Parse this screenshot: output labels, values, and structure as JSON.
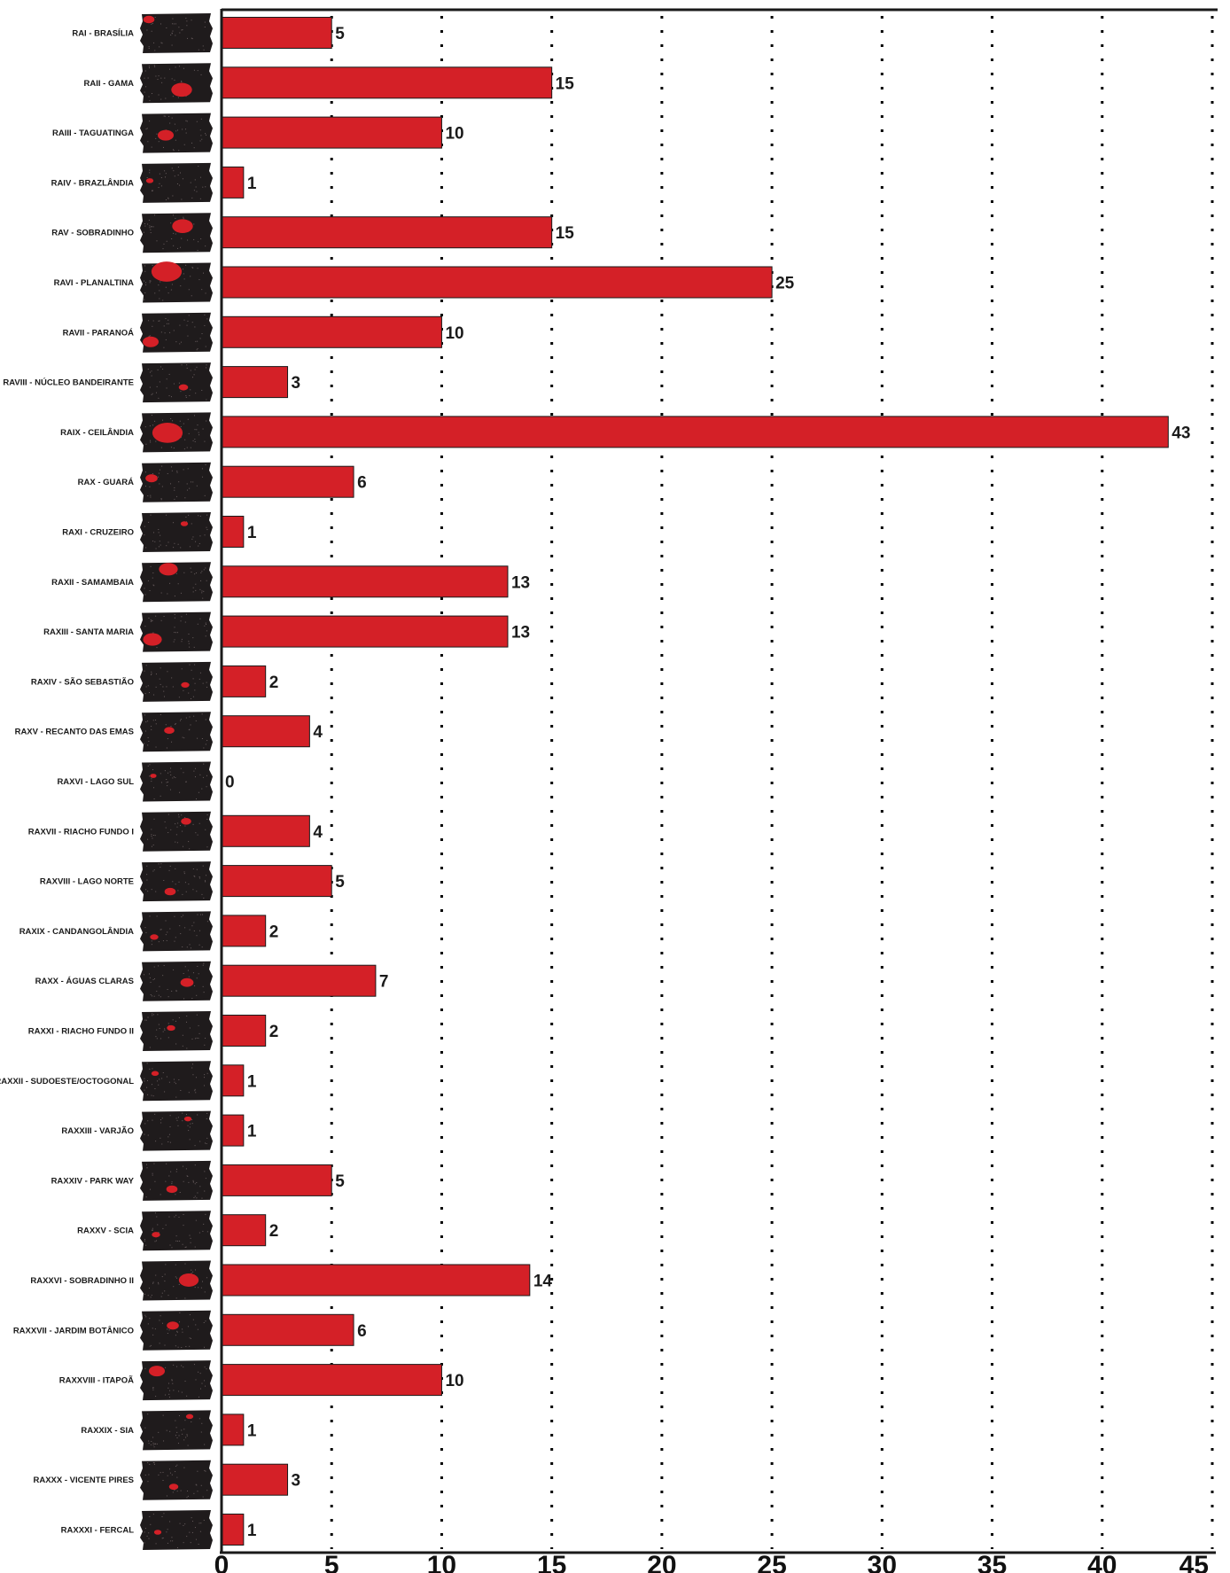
{
  "chart_data": {
    "type": "bar",
    "orientation": "horizontal",
    "title": "",
    "xlabel": "",
    "ylabel": "",
    "xlim": [
      0,
      45
    ],
    "x_ticks": [
      0,
      5,
      10,
      15,
      20,
      25,
      30,
      35,
      40,
      45
    ],
    "grid": "vertical dotted",
    "legend": "none",
    "bar_color": "#d42027",
    "map_background_color": "#1f1b1c",
    "categories": [
      "RAI - BRASÍLIA",
      "RAII - GAMA",
      "RAIII - TAGUATINGA",
      "RAIV - BRAZLÂNDIA",
      "RAV - SOBRADINHO",
      "RAVI - PLANALTINA",
      "RAVII - PARANOÁ",
      "RAVIII - NÚCLEO BANDEIRANTE",
      "RAIX - CEILÂNDIA",
      "RAX - GUARÁ",
      "RAXI - CRUZEIRO",
      "RAXII - SAMAMBAIA",
      "RAXIII - SANTA MARIA",
      "RAXIV - SÃO SEBASTIÃO",
      "RAXV - RECANTO DAS EMAS",
      "RAXVI - LAGO SUL",
      "RAXVII - RIACHO FUNDO I",
      "RAXVIII - LAGO NORTE",
      "RAXIX - CANDANGOLÂNDIA",
      "RAXX - ÁGUAS CLARAS",
      "RAXXI - RIACHO FUNDO II",
      "RAXXII - SUDOESTE/OCTOGONAL",
      "RAXXIII - VARJÃO",
      "RAXXIV - PARK WAY",
      "RAXXV - SCIA",
      "RAXXVI - SOBRADINHO II",
      "RAXXVII - JARDIM BOTÂNICO",
      "RAXXVIII - ITAPOÃ",
      "RAXXIX - SIA",
      "RAXXX - VICENTE PIRES",
      "RAXXXI - FERCAL"
    ],
    "values": [
      5,
      15,
      10,
      1,
      15,
      25,
      10,
      3,
      43,
      6,
      1,
      13,
      13,
      2,
      4,
      0,
      4,
      5,
      2,
      7,
      2,
      1,
      1,
      5,
      2,
      14,
      6,
      10,
      1,
      3,
      1
    ],
    "value_labels": [
      "5",
      "15",
      "10",
      "1",
      "15",
      "25",
      "10",
      "3",
      "43",
      "6",
      "1",
      "13",
      "13",
      "2",
      "4",
      "0",
      "4",
      "5",
      "2",
      "7",
      "2",
      "1",
      "1",
      "5",
      "2",
      "14",
      "6",
      "10",
      "1",
      "3",
      "1"
    ],
    "tick_labels": [
      "0",
      "5",
      "10",
      "15",
      "20",
      "25",
      "30",
      "35",
      "40",
      "45"
    ]
  }
}
